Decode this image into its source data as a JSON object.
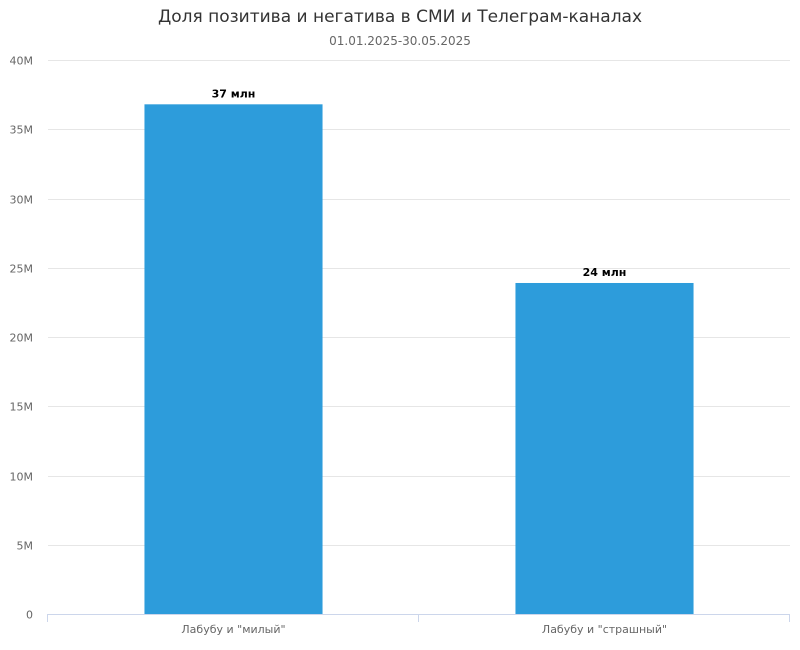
{
  "chart_data": {
    "type": "bar",
    "title": "Доля позитива и негатива в СМИ и Телеграм-каналах",
    "subtitle": "01.01.2025-30.05.2025",
    "xlabel": "",
    "ylabel": "",
    "categories": [
      "Лабубу и \"милый\"",
      "Лабубу и \"страшный\""
    ],
    "values": [
      36800000,
      23900000
    ],
    "data_labels": [
      "37 млн",
      "24 млн"
    ],
    "ylim": [
      0,
      40000000
    ],
    "yticks": [
      0,
      5000000,
      10000000,
      15000000,
      20000000,
      25000000,
      30000000,
      35000000,
      40000000
    ],
    "ytick_labels": [
      "0",
      "5M",
      "10M",
      "15M",
      "20M",
      "25M",
      "30M",
      "35M",
      "40M"
    ],
    "grid": true,
    "legend": "none",
    "bar_color": "#2d9cdb",
    "grid_color": "#e6e6e6",
    "axis_color": "#ccd6eb"
  }
}
